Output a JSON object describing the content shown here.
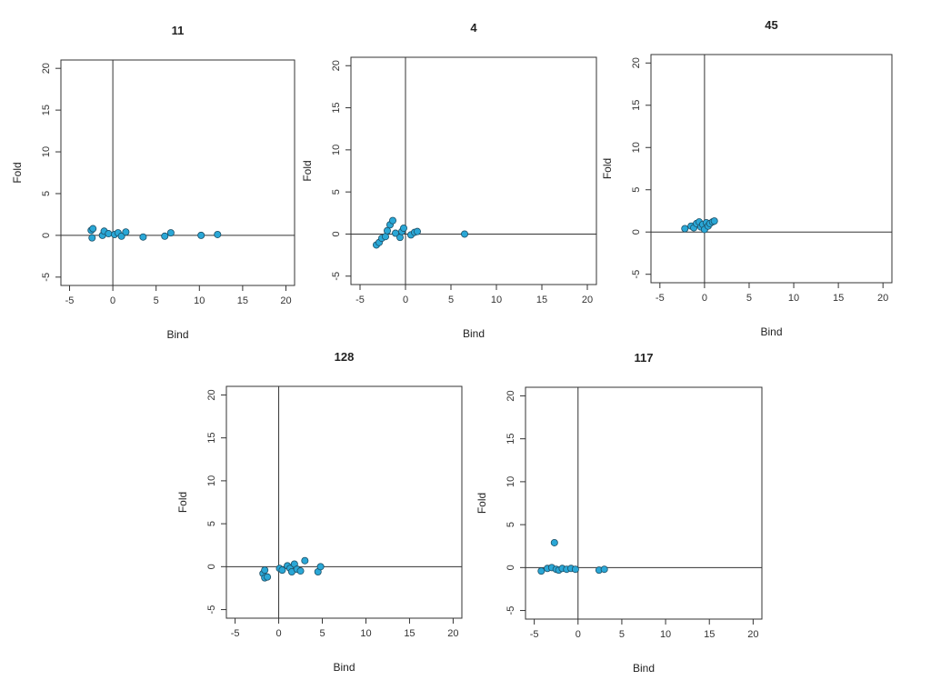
{
  "chart_data": [
    {
      "type": "scatter",
      "title": "11",
      "xlabel": "Bind",
      "ylabel": "Fold",
      "xlim": [
        -6,
        21
      ],
      "ylim": [
        -6,
        21
      ],
      "xticks": [
        -5,
        0,
        5,
        10,
        15,
        20
      ],
      "yticks": [
        -5,
        0,
        5,
        10,
        15,
        20
      ],
      "reference_lines": {
        "x": 0,
        "y": 0
      },
      "grid": false,
      "marker_color": "#2aa7d6",
      "points": [
        {
          "x": -2.5,
          "y": 0.6
        },
        {
          "x": -2.3,
          "y": 0.8
        },
        {
          "x": -2.4,
          "y": -0.3
        },
        {
          "x": -1.2,
          "y": 0.0
        },
        {
          "x": -1.0,
          "y": 0.5
        },
        {
          "x": -0.5,
          "y": 0.2
        },
        {
          "x": 0.2,
          "y": 0.1
        },
        {
          "x": 0.6,
          "y": 0.3
        },
        {
          "x": 1.0,
          "y": -0.1
        },
        {
          "x": 1.5,
          "y": 0.4
        },
        {
          "x": 3.5,
          "y": -0.2
        },
        {
          "x": 6.0,
          "y": -0.1
        },
        {
          "x": 6.7,
          "y": 0.3
        },
        {
          "x": 10.2,
          "y": 0.0
        },
        {
          "x": 12.1,
          "y": 0.1
        }
      ]
    },
    {
      "type": "scatter",
      "title": "4",
      "xlabel": "Bind",
      "ylabel": "Fold",
      "xlim": [
        -6,
        21
      ],
      "ylim": [
        -6,
        21
      ],
      "xticks": [
        -5,
        0,
        5,
        10,
        15,
        20
      ],
      "yticks": [
        -5,
        0,
        5,
        10,
        15,
        20
      ],
      "reference_lines": {
        "x": 0,
        "y": 0
      },
      "grid": false,
      "marker_color": "#2aa7d6",
      "points": [
        {
          "x": -3.2,
          "y": -1.3
        },
        {
          "x": -2.9,
          "y": -1.0
        },
        {
          "x": -2.6,
          "y": -0.5
        },
        {
          "x": -2.2,
          "y": -0.3
        },
        {
          "x": -2.0,
          "y": 0.4
        },
        {
          "x": -1.7,
          "y": 1.1
        },
        {
          "x": -1.4,
          "y": 1.6
        },
        {
          "x": -1.1,
          "y": 0.1
        },
        {
          "x": -0.6,
          "y": -0.4
        },
        {
          "x": -0.4,
          "y": 0.3
        },
        {
          "x": -0.2,
          "y": 0.7
        },
        {
          "x": 0.6,
          "y": -0.1
        },
        {
          "x": 1.0,
          "y": 0.2
        },
        {
          "x": 1.3,
          "y": 0.3
        },
        {
          "x": 6.5,
          "y": 0.0
        }
      ]
    },
    {
      "type": "scatter",
      "title": "45",
      "xlabel": "Bind",
      "ylabel": "Fold",
      "xlim": [
        -6,
        21
      ],
      "ylim": [
        -6,
        21
      ],
      "xticks": [
        -5,
        0,
        5,
        10,
        15,
        20
      ],
      "yticks": [
        -5,
        0,
        5,
        10,
        15,
        20
      ],
      "reference_lines": {
        "x": 0,
        "y": 0
      },
      "grid": false,
      "marker_color": "#2aa7d6",
      "points": [
        {
          "x": -2.2,
          "y": 0.4
        },
        {
          "x": -1.5,
          "y": 0.7
        },
        {
          "x": -1.2,
          "y": 0.5
        },
        {
          "x": -0.9,
          "y": 1.0
        },
        {
          "x": -0.6,
          "y": 1.2
        },
        {
          "x": -0.4,
          "y": 0.6
        },
        {
          "x": -0.2,
          "y": 0.9
        },
        {
          "x": 0.0,
          "y": 0.3
        },
        {
          "x": 0.2,
          "y": 1.1
        },
        {
          "x": 0.4,
          "y": 0.7
        },
        {
          "x": 0.6,
          "y": 1.0
        },
        {
          "x": 0.9,
          "y": 1.2
        },
        {
          "x": 1.1,
          "y": 1.3
        }
      ]
    },
    {
      "type": "scatter",
      "title": "128",
      "xlabel": "Bind",
      "ylabel": "Fold",
      "xlim": [
        -6,
        21
      ],
      "ylim": [
        -6,
        21
      ],
      "xticks": [
        -5,
        0,
        5,
        10,
        15,
        20
      ],
      "yticks": [
        -5,
        0,
        5,
        10,
        15,
        20
      ],
      "reference_lines": {
        "x": 0,
        "y": 0
      },
      "grid": false,
      "marker_color": "#2aa7d6",
      "points": [
        {
          "x": -1.8,
          "y": -0.8
        },
        {
          "x": -1.6,
          "y": -1.3
        },
        {
          "x": -1.3,
          "y": -1.2
        },
        {
          "x": -1.6,
          "y": -0.4
        },
        {
          "x": 0.1,
          "y": -0.2
        },
        {
          "x": 0.4,
          "y": -0.4
        },
        {
          "x": 1.0,
          "y": 0.1
        },
        {
          "x": 1.3,
          "y": -0.2
        },
        {
          "x": 1.5,
          "y": -0.6
        },
        {
          "x": 1.8,
          "y": 0.3
        },
        {
          "x": 2.1,
          "y": -0.3
        },
        {
          "x": 2.5,
          "y": -0.5
        },
        {
          "x": 3.0,
          "y": 0.7
        },
        {
          "x": 4.5,
          "y": -0.6
        },
        {
          "x": 4.8,
          "y": 0.0
        }
      ]
    },
    {
      "type": "scatter",
      "title": "117",
      "xlabel": "Bind",
      "ylabel": "Fold",
      "xlim": [
        -6,
        21
      ],
      "ylim": [
        -6,
        21
      ],
      "xticks": [
        -5,
        0,
        5,
        10,
        15,
        20
      ],
      "yticks": [
        -5,
        0,
        5,
        10,
        15,
        20
      ],
      "reference_lines": {
        "x": 0,
        "y": 0
      },
      "grid": false,
      "marker_color": "#2aa7d6",
      "points": [
        {
          "x": -4.2,
          "y": -0.4
        },
        {
          "x": -3.5,
          "y": -0.1
        },
        {
          "x": -3.0,
          "y": 0.0
        },
        {
          "x": -2.7,
          "y": 2.9
        },
        {
          "x": -2.5,
          "y": -0.2
        },
        {
          "x": -2.2,
          "y": -0.3
        },
        {
          "x": -1.8,
          "y": -0.1
        },
        {
          "x": -1.3,
          "y": -0.2
        },
        {
          "x": -0.8,
          "y": -0.1
        },
        {
          "x": -0.3,
          "y": -0.2
        },
        {
          "x": 2.4,
          "y": -0.3
        },
        {
          "x": 3.0,
          "y": -0.2
        }
      ]
    }
  ]
}
